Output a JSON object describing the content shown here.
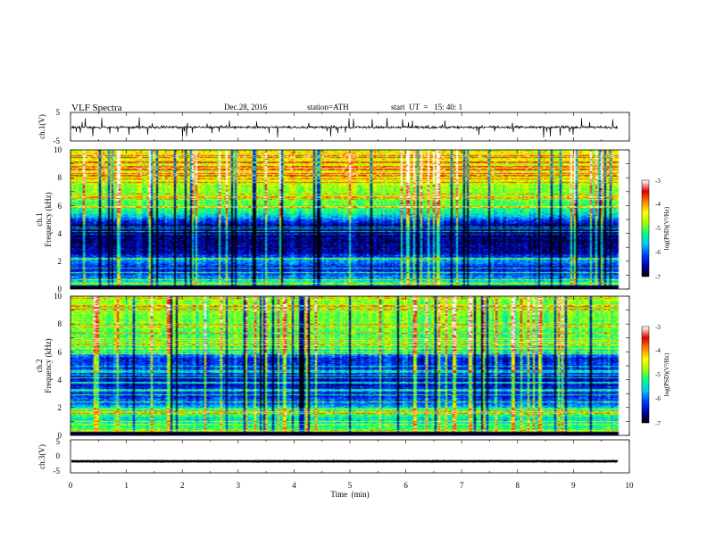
{
  "header": {
    "title": "VLF Spectra",
    "date": "Dec.28, 2016",
    "station": "station=ATH",
    "start": "start  UT  =   15: 40: 1"
  },
  "chart_data": [
    {
      "panel": "ch1-waveform",
      "type": "line",
      "ylabel": "ch.1(V)",
      "ylim": [
        -5,
        5
      ],
      "yticks": [
        "5",
        "-5"
      ],
      "xlim": [
        0,
        10
      ],
      "series_level": -0.2,
      "data_end_min": 9.8
    },
    {
      "panel": "ch1-spectrogram",
      "type": "heatmap",
      "ylabel": [
        "ch.1",
        "Frequency (kHz)"
      ],
      "ylim": [
        0,
        10
      ],
      "yticks": [
        "0",
        "2",
        "4",
        "6",
        "8",
        "10"
      ],
      "xlim": [
        0,
        10
      ],
      "band_profile_log": [
        [
          0,
          -4.8
        ],
        [
          0.5,
          -5.4
        ],
        [
          1.0,
          -6.0
        ],
        [
          1.5,
          -6.4
        ],
        [
          2.0,
          -5.8
        ],
        [
          2.6,
          -6.5
        ],
        [
          3.2,
          -6.7
        ],
        [
          4.4,
          -6.8
        ],
        [
          5.0,
          -6.0
        ],
        [
          5.6,
          -5.2
        ],
        [
          6.5,
          -4.9
        ],
        [
          8.0,
          -4.5
        ],
        [
          10,
          -4.3
        ]
      ],
      "colorbar": {
        "label": "log(PSD)(V²/Hz)",
        "range": [
          -7,
          -3
        ],
        "ticks": [
          "-3",
          "-4",
          "-5",
          "-6",
          "-7"
        ]
      }
    },
    {
      "panel": "ch2-spectrogram",
      "type": "heatmap",
      "ylabel": [
        "ch.2",
        "Frequency (kHz)"
      ],
      "ylim": [
        0,
        10
      ],
      "yticks": [
        "0",
        "2",
        "4",
        "6",
        "8",
        "10"
      ],
      "xlim": [
        0,
        10
      ],
      "band_profile_log": [
        [
          0,
          -4.9
        ],
        [
          0.5,
          -5.1
        ],
        [
          1.2,
          -5.5
        ],
        [
          1.6,
          -4.9
        ],
        [
          2.2,
          -5.9
        ],
        [
          3.0,
          -6.3
        ],
        [
          4.0,
          -6.5
        ],
        [
          4.6,
          -6.1
        ],
        [
          5.5,
          -6.3
        ],
        [
          6.2,
          -5.1
        ],
        [
          7.5,
          -5.0
        ],
        [
          10,
          -4.8
        ]
      ],
      "colorbar": {
        "label": "log(PSD)(V²/Hz)",
        "range": [
          -7,
          -3
        ],
        "ticks": [
          "-3",
          "-4",
          "-5",
          "-6",
          "-7"
        ]
      }
    },
    {
      "panel": "ch3-waveform",
      "type": "line",
      "ylabel": "ch.3(V)",
      "ylim": [
        -5,
        5
      ],
      "yticks": [
        "5",
        "0",
        "-5"
      ],
      "xlim": [
        0,
        10
      ],
      "series_level": -1.5,
      "data_end_min": 9.8,
      "xlabel": "Time  (min)",
      "xticks": [
        "0",
        "1",
        "2",
        "3",
        "4",
        "5",
        "6",
        "7",
        "8",
        "9",
        "10"
      ]
    }
  ],
  "colors": {
    "colormap": [
      "#000000",
      "#0000b4",
      "#0040ff",
      "#00c8ff",
      "#00ff80",
      "#a0ff00",
      "#ffff00",
      "#ff8000",
      "#e00000",
      "#ffffff"
    ]
  }
}
